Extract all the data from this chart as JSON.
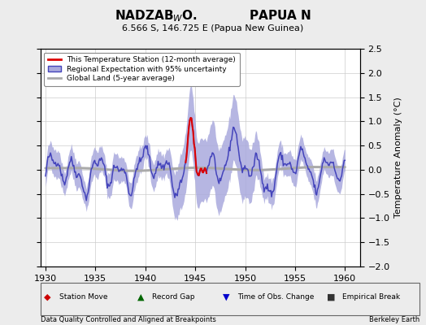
{
  "title_main": "NADZAB",
  "title_sub_w": "W",
  "title_after": "O.            PAPUA N",
  "subtitle": "6.566 S, 146.725 E (Papua New Guinea)",
  "ylabel": "Temperature Anomaly (°C)",
  "xlim": [
    1929.5,
    1961.5
  ],
  "ylim": [
    -2.0,
    2.5
  ],
  "yticks": [
    -2,
    -1.5,
    -1,
    -0.5,
    0,
    0.5,
    1,
    1.5,
    2,
    2.5
  ],
  "xticks": [
    1930,
    1935,
    1940,
    1945,
    1950,
    1955,
    1960
  ],
  "background_color": "#ececec",
  "plot_bg_color": "#ffffff",
  "regional_color": "#4444bb",
  "regional_fill_color": "#aaaadd",
  "station_color": "#dd0000",
  "global_color": "#aaaaaa",
  "footer_left": "Data Quality Controlled and Aligned at Breakpoints",
  "footer_right": "Berkeley Earth",
  "seed": 42
}
